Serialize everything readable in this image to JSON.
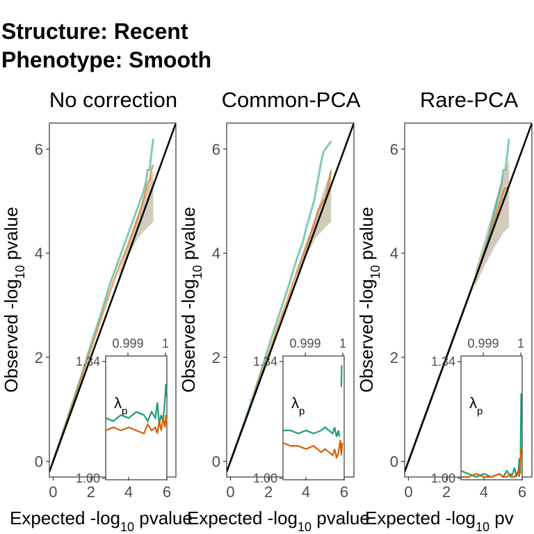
{
  "title_lines": [
    "Structure: Recent",
    "Phenotype: Smooth"
  ],
  "colors": {
    "green": "#1b9e77",
    "orange": "#d95f02",
    "band": "#9e8c67",
    "ref": "#000000"
  },
  "chart_data": [
    {
      "type": "line",
      "facet": "No correction",
      "xlabel": "Expected -log10 pvalue",
      "ylabel": "Observed -log10 pvalue",
      "xticks": [
        0,
        2
      ],
      "yticks": [
        0,
        2,
        4,
        6
      ],
      "xlim": [
        -0.2,
        6.5
      ],
      "ylim": [
        -0.3,
        6.5
      ],
      "series": [
        {
          "color": "green",
          "x": [
            0,
            0.5,
            1,
            1.5,
            2,
            2.5,
            3,
            3.5,
            3.8,
            4.0,
            4.2,
            4.4,
            4.6,
            4.8,
            4.9,
            5.0,
            5.1,
            5.2,
            5.3
          ],
          "y": [
            0,
            0.55,
            1.1,
            1.65,
            2.25,
            2.8,
            3.4,
            3.9,
            4.2,
            4.4,
            4.6,
            4.8,
            5.0,
            5.2,
            5.35,
            5.6,
            5.6,
            5.9,
            6.2
          ]
        },
        {
          "color": "orange",
          "x": [
            0,
            0.5,
            1,
            1.5,
            2,
            2.5,
            3,
            3.5,
            3.8,
            4.0,
            4.2,
            4.4,
            4.6,
            4.8,
            4.9,
            5.0,
            5.1,
            5.2,
            5.3
          ],
          "y": [
            0,
            0.52,
            1.05,
            1.6,
            2.15,
            2.7,
            3.25,
            3.75,
            4.0,
            4.2,
            4.4,
            4.6,
            4.8,
            5.05,
            5.2,
            5.35,
            5.4,
            5.6,
            5.7
          ]
        }
      ],
      "band": {
        "x": [
          3.5,
          4.0,
          4.5,
          5.0,
          5.3
        ],
        "lower": [
          3.55,
          3.95,
          4.3,
          4.5,
          4.6
        ],
        "upper": [
          3.65,
          4.2,
          4.75,
          5.3,
          5.6
        ]
      },
      "inset": {
        "top_ticks": [
          "0.999",
          "1"
        ],
        "left_ticks": [
          "1.34",
          "1.00"
        ],
        "bottom_ticks": [
          "4",
          "6"
        ],
        "label": "λ",
        "label_sub": "p",
        "xlim": [
          2.8,
          6.0
        ],
        "ylim": [
          1.0,
          1.39
        ],
        "series": [
          {
            "color": "green",
            "x": [
              2.8,
              3.2,
              3.6,
              4.0,
              4.4,
              4.8,
              5.0,
              5.2,
              5.4,
              5.5,
              5.6,
              5.7,
              5.8,
              5.9,
              5.95,
              6.0
            ],
            "y": [
              1.19,
              1.18,
              1.2,
              1.19,
              1.21,
              1.2,
              1.18,
              1.21,
              1.19,
              1.24,
              1.17,
              1.2,
              1.18,
              1.25,
              1.3,
              1.26
            ]
          },
          {
            "color": "orange",
            "x": [
              2.8,
              3.2,
              3.6,
              4.0,
              4.4,
              4.8,
              5.0,
              5.2,
              5.4,
              5.5,
              5.6,
              5.7,
              5.8,
              5.9,
              5.95,
              6.0
            ],
            "y": [
              1.15,
              1.16,
              1.15,
              1.16,
              1.15,
              1.14,
              1.17,
              1.15,
              1.16,
              1.14,
              1.18,
              1.15,
              1.19,
              1.16,
              1.2,
              1.17
            ]
          }
        ]
      }
    },
    {
      "type": "line",
      "facet": "Common-PCA",
      "xlabel": "Expected -log10 pvalue",
      "ylabel": "Observed -log10 pvalue",
      "xticks": [
        0,
        2
      ],
      "yticks": [
        0,
        2,
        4,
        6
      ],
      "xlim": [
        -0.2,
        6.5
      ],
      "ylim": [
        -0.3,
        6.5
      ],
      "series": [
        {
          "color": "green",
          "x": [
            0,
            0.5,
            1,
            1.5,
            2,
            2.5,
            3,
            3.5,
            3.8,
            4.0,
            4.2,
            4.4,
            4.6,
            4.8,
            4.9,
            5.0,
            5.1,
            5.2,
            5.3
          ],
          "y": [
            0,
            0.52,
            1.05,
            1.6,
            2.2,
            2.75,
            3.3,
            3.9,
            4.2,
            4.5,
            4.75,
            5.0,
            5.4,
            5.8,
            5.95,
            6.0,
            6.05,
            6.1,
            6.15
          ]
        },
        {
          "color": "orange",
          "x": [
            0,
            0.5,
            1,
            1.5,
            2,
            2.5,
            3,
            3.5,
            3.8,
            4.0,
            4.2,
            4.4,
            4.6,
            4.8,
            4.9,
            5.0,
            5.1,
            5.2,
            5.3
          ],
          "y": [
            0,
            0.5,
            1.0,
            1.55,
            2.05,
            2.6,
            3.1,
            3.65,
            3.95,
            4.15,
            4.35,
            4.55,
            4.8,
            4.95,
            5.0,
            5.05,
            5.2,
            5.4,
            5.6
          ]
        }
      ],
      "band": {
        "x": [
          3.5,
          4.0,
          4.5,
          5.0,
          5.3
        ],
        "lower": [
          3.55,
          3.95,
          4.3,
          4.5,
          4.6
        ],
        "upper": [
          3.65,
          4.2,
          4.75,
          5.3,
          5.6
        ]
      },
      "inset": {
        "top_ticks": [
          "0.999",
          "1"
        ],
        "left_ticks": [
          "1.34",
          "1.00"
        ],
        "bottom_ticks": [
          "4",
          "6"
        ],
        "label": "λ",
        "label_sub": "p",
        "xlim": [
          2.8,
          6.0
        ],
        "ylim": [
          1.0,
          1.39
        ],
        "series": [
          {
            "color": "green",
            "x": [
              2.8,
              3.2,
              3.6,
              4.0,
              4.4,
              4.8,
              5.0,
              5.2,
              5.4,
              5.5,
              5.6,
              5.7,
              5.75
            ],
            "y": [
              1.15,
              1.15,
              1.14,
              1.15,
              1.14,
              1.15,
              1.16,
              1.15,
              1.14,
              1.16,
              1.13,
              1.15,
              1.13
            ]
          },
          {
            "color": "green",
            "x": [
              5.85,
              5.87
            ],
            "y": [
              1.29,
              1.36
            ]
          },
          {
            "color": "orange",
            "x": [
              2.8,
              3.2,
              3.6,
              4.0,
              4.4,
              4.8,
              5.0,
              5.2,
              5.4,
              5.5,
              5.6,
              5.7,
              5.8,
              5.85,
              5.9
            ],
            "y": [
              1.11,
              1.1,
              1.1,
              1.09,
              1.1,
              1.08,
              1.09,
              1.08,
              1.07,
              1.09,
              1.06,
              1.08,
              1.12,
              1.07,
              1.11
            ]
          }
        ]
      }
    },
    {
      "type": "line",
      "facet": "Rare-PCA",
      "xlabel": "Expected -log10 pv",
      "ylabel": "Observed -log10 pvalue",
      "xticks": [
        0,
        2
      ],
      "yticks": [
        0,
        2,
        4,
        6
      ],
      "xlim": [
        -0.2,
        6.5
      ],
      "ylim": [
        -0.3,
        6.5
      ],
      "series": [
        {
          "color": "green",
          "x": [
            0,
            0.5,
            1,
            1.5,
            2,
            2.5,
            3,
            3.5,
            3.8,
            4.0,
            4.2,
            4.4,
            4.6,
            4.8,
            4.9,
            5.0,
            5.1,
            5.2,
            5.3
          ],
          "y": [
            0,
            0.5,
            1.0,
            1.5,
            2.0,
            2.5,
            3.0,
            3.5,
            3.8,
            4.05,
            4.3,
            4.6,
            4.9,
            5.2,
            5.35,
            5.6,
            5.6,
            5.9,
            6.2
          ]
        },
        {
          "color": "orange",
          "x": [
            0,
            0.5,
            1,
            1.5,
            2,
            2.5,
            3,
            3.5,
            3.8,
            4.0,
            4.2,
            4.4,
            4.6,
            4.8,
            4.9,
            5.0,
            5.1,
            5.2,
            5.3
          ],
          "y": [
            0,
            0.5,
            1.0,
            1.5,
            2.0,
            2.5,
            3.0,
            3.5,
            3.8,
            4.0,
            4.2,
            4.45,
            4.7,
            4.95,
            5.05,
            5.2,
            5.25,
            5.25,
            5.25
          ]
        }
      ],
      "band": {
        "x": [
          3.5,
          4.0,
          4.5,
          5.0,
          5.3
        ],
        "lower": [
          3.35,
          3.75,
          4.1,
          4.4,
          4.5
        ],
        "upper": [
          3.65,
          4.25,
          4.9,
          5.5,
          5.8
        ]
      },
      "inset": {
        "top_ticks": [
          "0.999",
          "1"
        ],
        "left_ticks": [
          "1.34",
          "1.00"
        ],
        "bottom_ticks": [
          "4",
          "6"
        ],
        "label": "λ",
        "label_sub": "p",
        "xlim": [
          2.8,
          6.0
        ],
        "ylim": [
          1.0,
          1.39
        ],
        "series": [
          {
            "color": "green",
            "x": [
              2.8,
              3.2,
              3.6,
              4.0,
              4.4,
              4.8,
              5.0,
              5.2,
              5.4,
              5.5,
              5.6,
              5.7,
              5.8,
              5.85,
              5.9,
              5.95
            ],
            "y": [
              1.02,
              1.01,
              1.0,
              1.01,
              1.0,
              1.01,
              1.0,
              1.02,
              1.0,
              1.01,
              1.03,
              1.0,
              1.02,
              1.06,
              1.01,
              1.27
            ]
          },
          {
            "color": "orange",
            "x": [
              2.8,
              3.2,
              3.6,
              4.0,
              4.4,
              4.8,
              5.0,
              5.2,
              5.4,
              5.5,
              5.6,
              5.7,
              5.8,
              5.85,
              5.9,
              5.95
            ],
            "y": [
              1.0,
              1.0,
              1.01,
              1.0,
              1.0,
              1.01,
              1.0,
              1.0,
              1.01,
              1.0,
              1.0,
              1.01,
              1.02,
              1.0,
              1.05,
              1.09
            ]
          }
        ]
      }
    }
  ]
}
